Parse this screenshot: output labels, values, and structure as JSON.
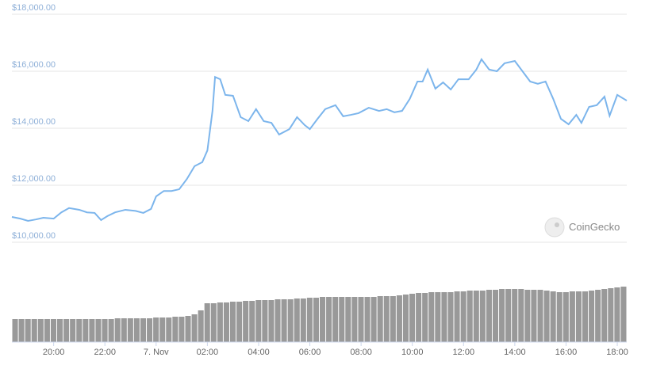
{
  "chart_data": {
    "type": "line",
    "watermark": "CoinGecko",
    "x": [
      18.37,
      18.7,
      19.0,
      19.3,
      19.6,
      20.0,
      20.3,
      20.6,
      21.0,
      21.3,
      21.6,
      21.85,
      22.1,
      22.4,
      22.8,
      23.2,
      23.5,
      23.8,
      24.0,
      24.3,
      24.6,
      24.9,
      25.2,
      25.5,
      25.8,
      26.0,
      26.2,
      26.3,
      26.5,
      26.7,
      27.0,
      27.3,
      27.6,
      27.9,
      28.2,
      28.5,
      28.8,
      29.2,
      29.5,
      29.8,
      30.0,
      30.3,
      30.6,
      31.0,
      31.3,
      31.6,
      31.9,
      32.3,
      32.7,
      33.0,
      33.3,
      33.6,
      33.9,
      34.2,
      34.4,
      34.6,
      34.9,
      35.2,
      35.5,
      35.8,
      36.2,
      36.5,
      36.7,
      37.0,
      37.3,
      37.6,
      38.0,
      38.3,
      38.6,
      38.9,
      39.2,
      39.5,
      39.8,
      40.1,
      40.4,
      40.6,
      40.9,
      41.2,
      41.5,
      41.7,
      42.0,
      42.37
    ],
    "series": [
      {
        "color": "#7cb5ec",
        "values": [
          10890,
          10830,
          10750,
          10800,
          10860,
          10830,
          11050,
          11200,
          11140,
          11050,
          11030,
          10780,
          10920,
          11050,
          11140,
          11100,
          11030,
          11170,
          11610,
          11800,
          11800,
          11860,
          12220,
          12670,
          12810,
          13220,
          14610,
          15800,
          15720,
          15170,
          15140,
          14390,
          14250,
          14670,
          14250,
          14190,
          13780,
          13970,
          14390,
          14110,
          13970,
          14330,
          14670,
          14810,
          14420,
          14470,
          14530,
          14720,
          14610,
          14670,
          14560,
          14610,
          15030,
          15640,
          15640,
          16060,
          15390,
          15610,
          15360,
          15720,
          15720,
          16060,
          16420,
          16060,
          16000,
          16280,
          16360,
          16000,
          15640,
          15560,
          15640,
          15030,
          14330,
          14140,
          14470,
          14190,
          14750,
          14810,
          15110,
          14440,
          15170,
          14970
        ]
      }
    ],
    "volume": {
      "color": "#999999",
      "ylim": [
        0,
        80
      ],
      "values": [
        29,
        29,
        29,
        29,
        29,
        29,
        29,
        29,
        29,
        29,
        29,
        29,
        29,
        29,
        29,
        29,
        30,
        30,
        30,
        30,
        30,
        30,
        31,
        31,
        31,
        32,
        32,
        33,
        35,
        40,
        49,
        49,
        50,
        50,
        51,
        51,
        52,
        52,
        53,
        53,
        53,
        54,
        54,
        54,
        55,
        55,
        56,
        56,
        57,
        57,
        57,
        57,
        57,
        57,
        57,
        57,
        57,
        58,
        58,
        58,
        59,
        60,
        61,
        62,
        62,
        63,
        63,
        63,
        63,
        64,
        64,
        65,
        65,
        65,
        66,
        66,
        67,
        67,
        67,
        67,
        66,
        66,
        66,
        65,
        64,
        63,
        63,
        64,
        64,
        64,
        65,
        66,
        67,
        68,
        69,
        70
      ]
    },
    "xlim": [
      18.37,
      42.37
    ],
    "xticks": [
      {
        "value": 20,
        "label": "20:00"
      },
      {
        "value": 22,
        "label": "22:00"
      },
      {
        "value": 24,
        "label": "7. Nov"
      },
      {
        "value": 26,
        "label": "02:00"
      },
      {
        "value": 28,
        "label": "04:00"
      },
      {
        "value": 30,
        "label": "06:00"
      },
      {
        "value": 32,
        "label": "08:00"
      },
      {
        "value": 34,
        "label": "10:00"
      },
      {
        "value": 36,
        "label": "12:00"
      },
      {
        "value": 38,
        "label": "14:00"
      },
      {
        "value": 40,
        "label": "16:00"
      },
      {
        "value": 42,
        "label": "18:00"
      }
    ],
    "ylim": [
      9000,
      18000
    ],
    "yticks": [
      {
        "value": 10000,
        "label": "$10,000.00"
      },
      {
        "value": 12000,
        "label": "$12,000.00"
      },
      {
        "value": 14000,
        "label": "$14,000.00"
      },
      {
        "value": 16000,
        "label": "$16,000.00"
      },
      {
        "value": 18000,
        "label": "$18,000.00"
      }
    ],
    "grid": true
  }
}
